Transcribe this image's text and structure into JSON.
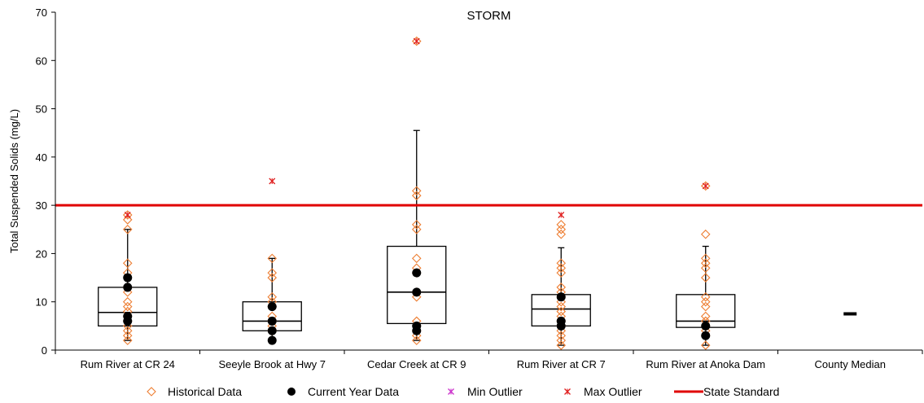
{
  "chart_data": {
    "type": "box",
    "title": "STORM",
    "ylabel": "Total Suspended Solids (mg/L)",
    "xlabel": "",
    "ylim": [
      0,
      70
    ],
    "yticks": [
      0,
      10,
      20,
      30,
      40,
      50,
      60,
      70
    ],
    "grid": false,
    "legend_position": "bottom",
    "categories": [
      "Rum River at CR 24",
      "Seeyle Brook at Hwy 7",
      "Cedar Creek at CR 9",
      "Rum River at CR 7",
      "Rum River at Anoka Dam",
      "County Median"
    ],
    "state_standard": 30,
    "county_median": 7.5,
    "boxes": [
      {
        "q1": 5,
        "median": 7.8,
        "q3": 13,
        "whisker_low": 2,
        "whisker_high": 25
      },
      {
        "q1": 4,
        "median": 6,
        "q3": 10,
        "whisker_low": 2,
        "whisker_high": 19
      },
      {
        "q1": 5.5,
        "median": 12,
        "q3": 21.5,
        "whisker_low": 2,
        "whisker_high": 45.5
      },
      {
        "q1": 5,
        "median": 8.5,
        "q3": 11.5,
        "whisker_low": 1,
        "whisker_high": 21.2
      },
      {
        "q1": 4.7,
        "median": 6,
        "q3": 11.5,
        "whisker_low": 1,
        "whisker_high": 21.5
      }
    ],
    "historical_data": [
      [
        2,
        3,
        4,
        5,
        6,
        7,
        8,
        9,
        10,
        12,
        13,
        16,
        18,
        25,
        27,
        28
      ],
      [
        4,
        5,
        6,
        7,
        9,
        10,
        11,
        15,
        16,
        19
      ],
      [
        2,
        3,
        4,
        5,
        6,
        11,
        12,
        16,
        17,
        19,
        25,
        26,
        32,
        33,
        64
      ],
      [
        1,
        2,
        3,
        4,
        5,
        6,
        7,
        8,
        9,
        10,
        11,
        12,
        13,
        16,
        17,
        18,
        24,
        25,
        26
      ],
      [
        1,
        3,
        4,
        5,
        6,
        7,
        9,
        10,
        11,
        15,
        17,
        18,
        19,
        24,
        34
      ]
    ],
    "current_year_data": [
      [
        6,
        7,
        13,
        15
      ],
      [
        2,
        4,
        6,
        9
      ],
      [
        4,
        5,
        12,
        16
      ],
      [
        5,
        6,
        11
      ],
      [
        3,
        5
      ]
    ],
    "max_outliers": [
      [
        28
      ],
      [
        35
      ],
      [
        64
      ],
      [
        28
      ],
      [
        34
      ]
    ],
    "min_outliers": [
      [],
      [],
      [],
      [],
      []
    ],
    "legend": [
      "Historical Data",
      "Current Year Data",
      "Min Outlier",
      "Max Outlier",
      "State Standard"
    ],
    "colors": {
      "historical": "#ED7D31",
      "current": "#000000",
      "min_outlier": "#CC33CC",
      "max_outlier": "#E02020",
      "standard": "#E00000",
      "box": "#000000"
    }
  }
}
